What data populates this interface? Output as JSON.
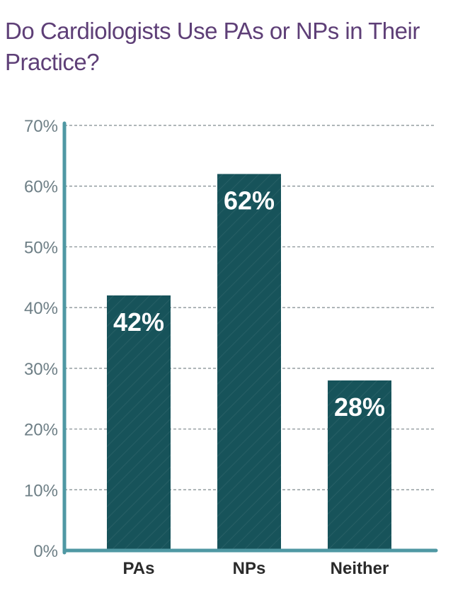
{
  "title": "Do Cardiologists Use PAs or NPs in Their Practice?",
  "colors": {
    "bar": "#17535a",
    "axis": "#4f98a3",
    "grid": "#7f8a8e",
    "title": "#5e3f77"
  },
  "chart_data": {
    "type": "bar",
    "title": "Do Cardiologists Use PAs or NPs in Their Practice?",
    "categories": [
      "PAs",
      "NPs",
      "Neither"
    ],
    "values": [
      42,
      62,
      28
    ],
    "value_labels": [
      "42%",
      "62%",
      "28%"
    ],
    "ylim": [
      0,
      70
    ],
    "yticks": [
      0,
      10,
      20,
      30,
      40,
      50,
      60,
      70
    ],
    "ytick_labels": [
      "0%",
      "10%",
      "20%",
      "30%",
      "40%",
      "50%",
      "60%",
      "70%"
    ],
    "xlabel": "",
    "ylabel": "",
    "grid": true
  }
}
